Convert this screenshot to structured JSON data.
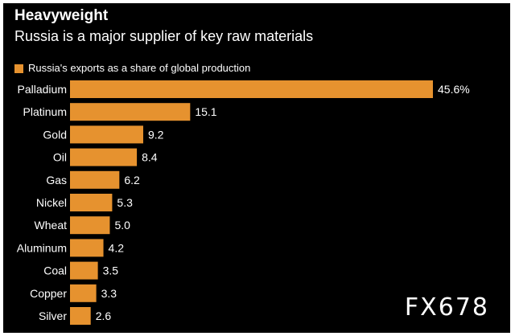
{
  "chart_data": {
    "type": "bar",
    "orientation": "horizontal",
    "title": "Heavyweight",
    "subtitle": "Russia is a major supplier of key raw materials",
    "series": [
      {
        "name": "Russia's exports as a share of global production",
        "color": "#e6922f",
        "values": [
          45.6,
          15.1,
          9.2,
          8.4,
          6.2,
          5.3,
          5.0,
          4.2,
          3.5,
          3.3,
          2.6
        ],
        "value_labels": [
          "45.6%",
          "15.1",
          "9.2",
          "8.4",
          "6.2",
          "5.3",
          "5.0",
          "4.2",
          "3.5",
          "3.3",
          "2.6"
        ]
      }
    ],
    "categories": [
      "Palladium",
      "Platinum",
      "Gold",
      "Oil",
      "Gas",
      "Nickel",
      "Wheat",
      "Aluminum",
      "Coal",
      "Copper",
      "Silver"
    ],
    "xlim": [
      0,
      45.6
    ],
    "xlabel": "",
    "ylabel": "",
    "grid": false,
    "legend": "top-left"
  },
  "watermark": "FX678",
  "colors": {
    "background": "#000000",
    "bar": "#e6922f",
    "text": "#ffffff"
  }
}
